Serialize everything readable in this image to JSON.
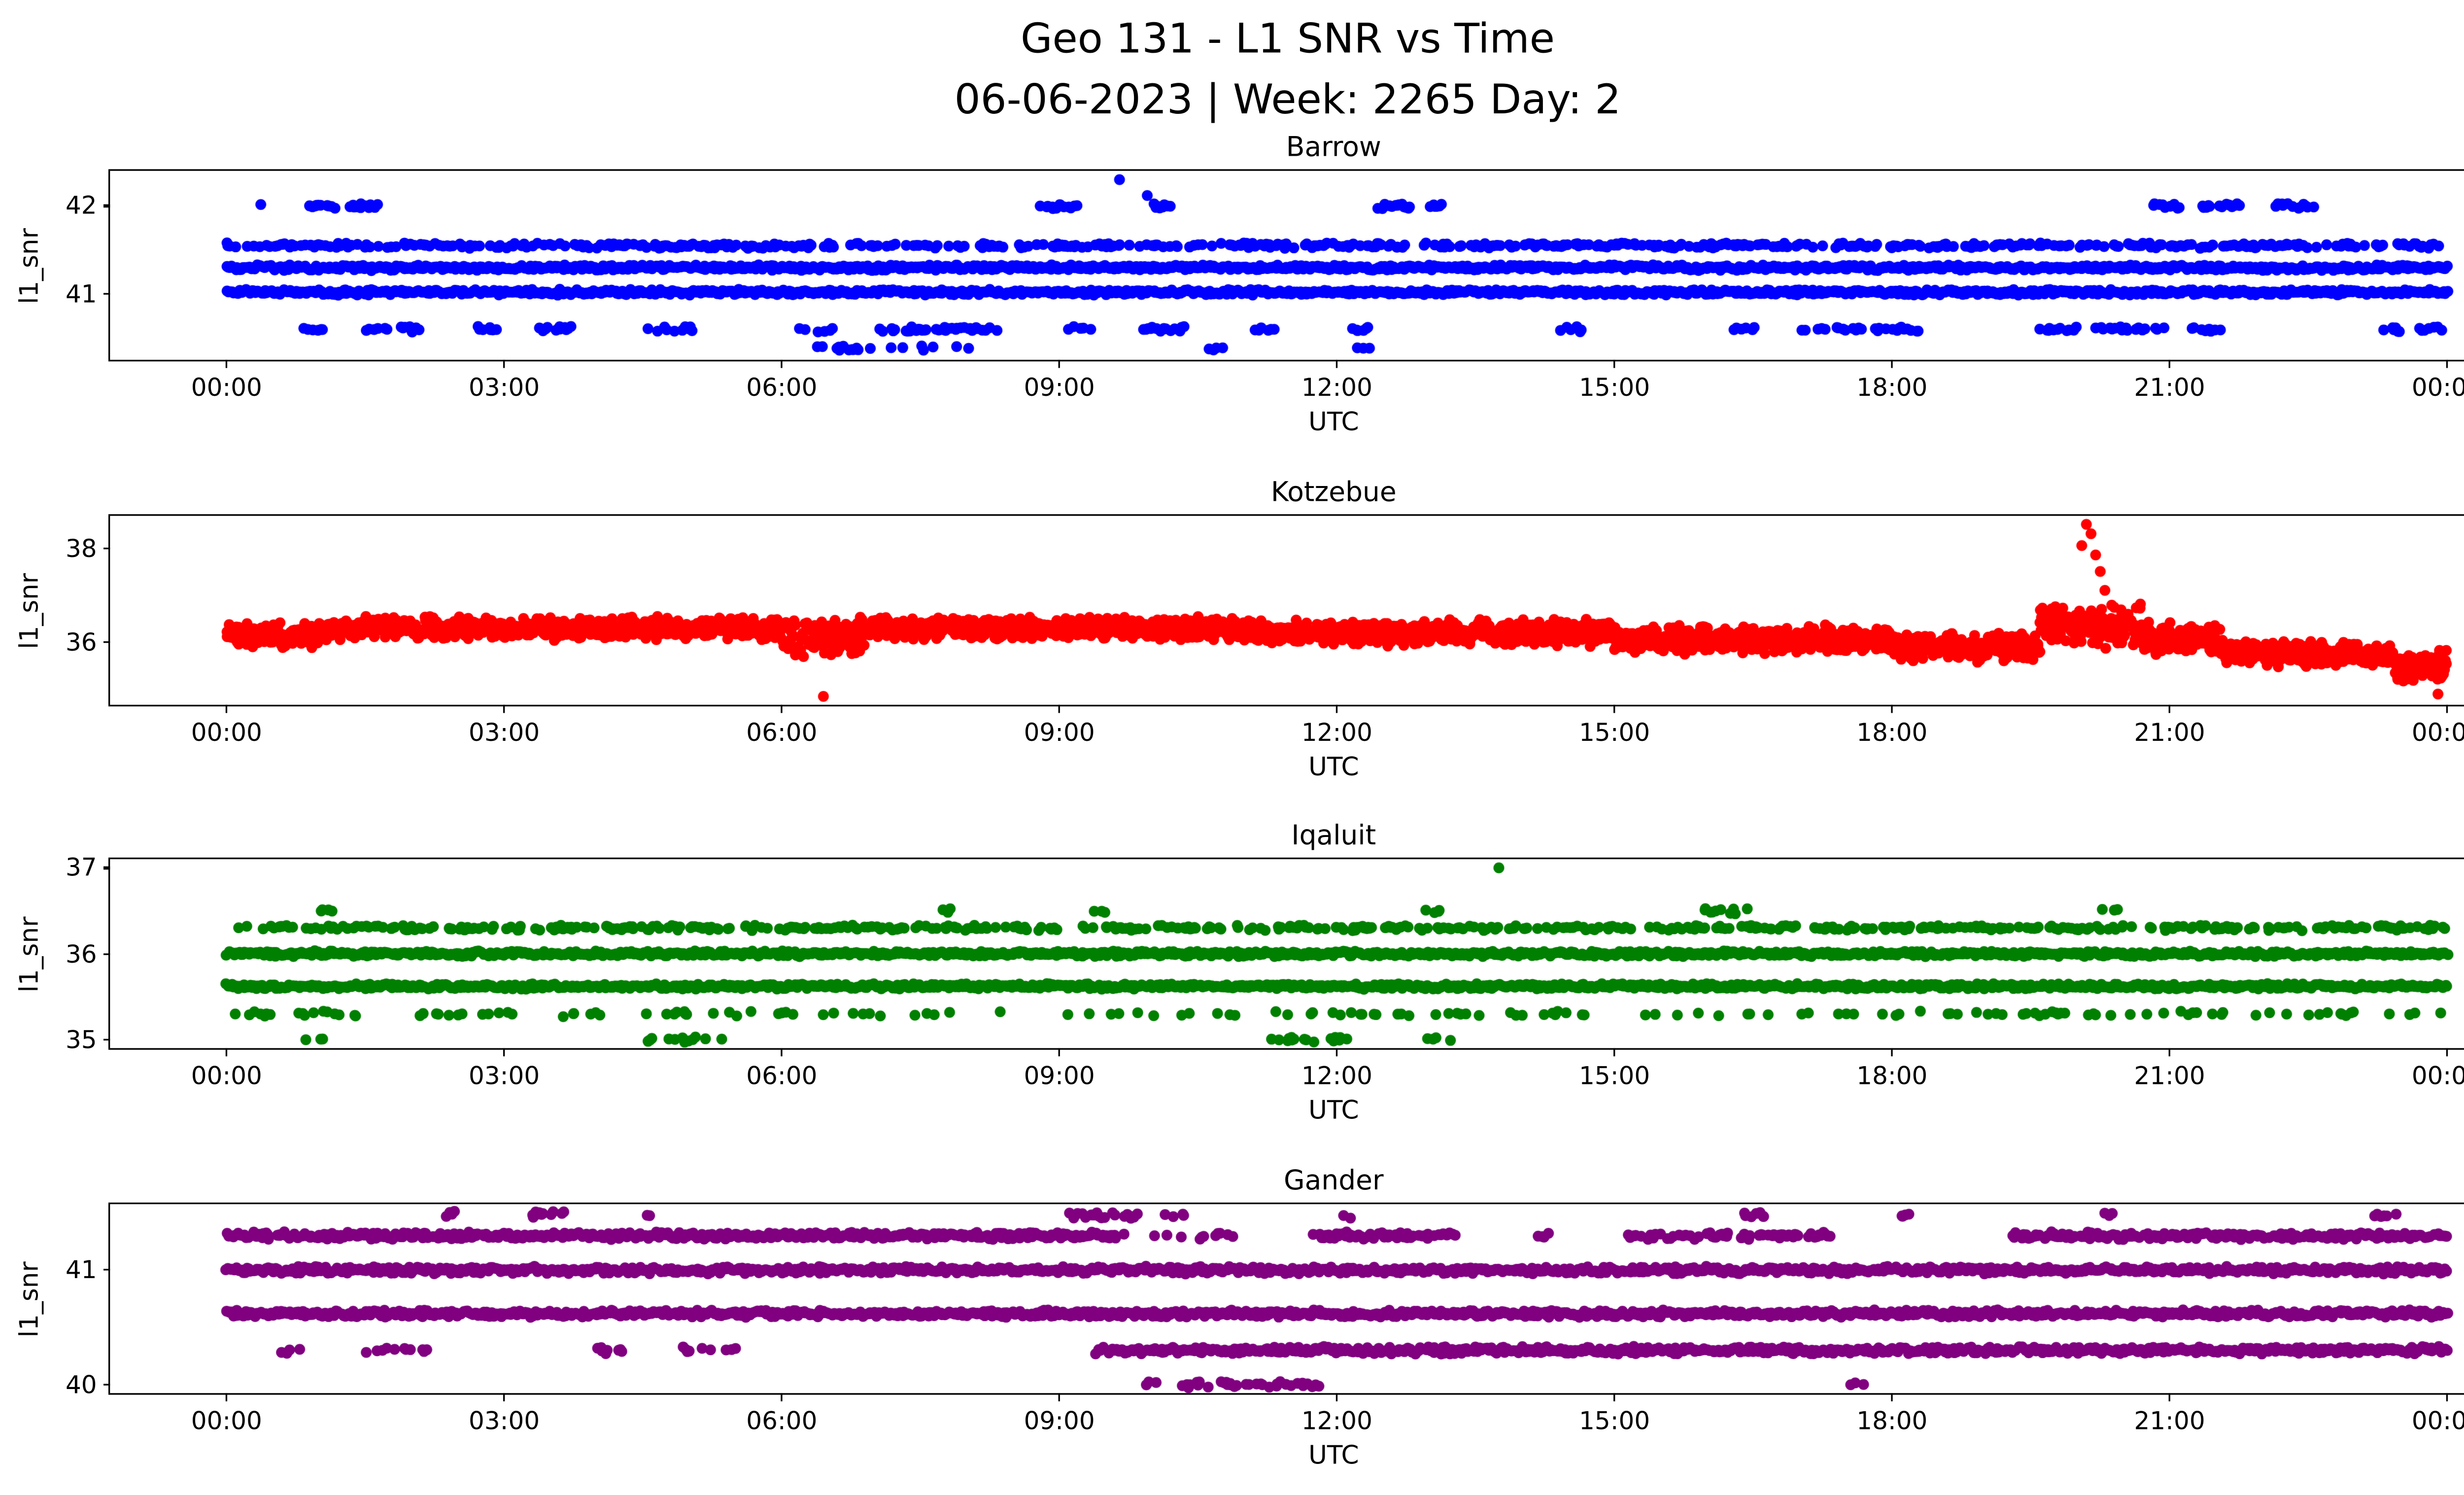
{
  "figure": {
    "title": "Geo 131 - L1 SNR vs Time",
    "subtitle": "06-06-2023 | Week: 2265 Day: 2"
  },
  "chart_data": [
    {
      "type": "scatter",
      "title": "Barrow",
      "ylabel": "l1_snr",
      "xlabel": "UTC",
      "color": "#0000ff",
      "xlim": [
        -1.26,
        25.19
      ],
      "ylim": [
        40.25,
        42.4
      ],
      "x_ticks": [
        {
          "t": 0,
          "label": "00:00"
        },
        {
          "t": 3,
          "label": "03:00"
        },
        {
          "t": 6,
          "label": "06:00"
        },
        {
          "t": 9,
          "label": "09:00"
        },
        {
          "t": 12,
          "label": "12:00"
        },
        {
          "t": 15,
          "label": "15:00"
        },
        {
          "t": 18,
          "label": "18:00"
        },
        {
          "t": 21,
          "label": "21:00"
        },
        {
          "t": 24,
          "label": "00:00"
        }
      ],
      "y_ticks": [
        {
          "v": 42,
          "label": "42"
        },
        {
          "v": 41,
          "label": "41"
        }
      ],
      "bands": [
        {
          "y": 41.55,
          "t0": 0,
          "t1": 24,
          "density": 0.5
        },
        {
          "y": 41.3,
          "t0": 0,
          "t1": 24,
          "density": 1.0
        },
        {
          "y": 41.02,
          "t0": 0,
          "t1": 24,
          "density": 1.0
        },
        {
          "y": 42.0,
          "t0": 0.3,
          "t1": 0.42,
          "density": 0.6
        },
        {
          "y": 42.0,
          "t0": 0.9,
          "t1": 1.2,
          "density": 0.6
        },
        {
          "y": 42.0,
          "t0": 1.3,
          "t1": 1.65,
          "density": 0.7
        },
        {
          "y": 42.0,
          "t0": 8.8,
          "t1": 9.2,
          "density": 0.7
        },
        {
          "y": 42.0,
          "t0": 10.0,
          "t1": 10.2,
          "density": 0.5
        },
        {
          "y": 42.0,
          "t0": 12.45,
          "t1": 12.8,
          "density": 0.6
        },
        {
          "y": 42.0,
          "t0": 13.0,
          "t1": 13.15,
          "density": 0.5
        },
        {
          "y": 42.0,
          "t0": 20.8,
          "t1": 21.1,
          "density": 0.6
        },
        {
          "y": 42.0,
          "t0": 21.35,
          "t1": 21.75,
          "density": 0.6
        },
        {
          "y": 42.0,
          "t0": 22.15,
          "t1": 22.55,
          "density": 0.6
        },
        {
          "y": 40.6,
          "t0": 0.8,
          "t1": 1.05,
          "density": 0.4
        },
        {
          "y": 40.6,
          "t0": 1.5,
          "t1": 2.1,
          "density": 0.45
        },
        {
          "y": 40.6,
          "t0": 2.6,
          "t1": 3.0,
          "density": 0.4
        },
        {
          "y": 40.6,
          "t0": 3.35,
          "t1": 3.75,
          "density": 0.6
        },
        {
          "y": 40.6,
          "t0": 4.55,
          "t1": 5.05,
          "density": 0.4
        },
        {
          "y": 40.6,
          "t0": 6.2,
          "t1": 6.55,
          "density": 0.45
        },
        {
          "y": 40.6,
          "t0": 7.0,
          "t1": 8.35,
          "density": 0.5
        },
        {
          "y": 40.6,
          "t0": 9.0,
          "t1": 9.35,
          "density": 0.45
        },
        {
          "y": 40.6,
          "t0": 9.9,
          "t1": 10.45,
          "density": 0.45
        },
        {
          "y": 40.6,
          "t0": 11.05,
          "t1": 11.35,
          "density": 0.4
        },
        {
          "y": 40.6,
          "t0": 12.05,
          "t1": 12.35,
          "density": 0.4
        },
        {
          "y": 40.6,
          "t0": 14.35,
          "t1": 14.65,
          "density": 0.35
        },
        {
          "y": 40.6,
          "t0": 16.25,
          "t1": 16.55,
          "density": 0.35
        },
        {
          "y": 40.6,
          "t0": 17.0,
          "t1": 18.35,
          "density": 0.4
        },
        {
          "y": 40.6,
          "t0": 19.55,
          "t1": 20.95,
          "density": 0.45
        },
        {
          "y": 40.6,
          "t0": 21.25,
          "t1": 21.55,
          "density": 0.35
        },
        {
          "y": 40.6,
          "t0": 23.25,
          "t1": 23.95,
          "density": 0.5
        },
        {
          "y": 40.38,
          "t0": 6.35,
          "t1": 8.15,
          "density": 0.3
        },
        {
          "y": 40.38,
          "t0": 10.6,
          "t1": 10.85,
          "density": 0.25
        },
        {
          "y": 40.38,
          "t0": 12.15,
          "t1": 12.35,
          "density": 0.3
        }
      ],
      "outliers": [
        [
          9.65,
          42.3
        ],
        [
          9.95,
          42.12
        ]
      ]
    },
    {
      "type": "scatter",
      "title": "Kotzebue",
      "ylabel": "l1_snr",
      "xlabel": "UTC",
      "color": "#ff0000",
      "xlim": [
        -1.26,
        25.19
      ],
      "ylim": [
        34.67,
        38.68
      ],
      "x_ticks": [
        {
          "t": 0,
          "label": "00:00"
        },
        {
          "t": 3,
          "label": "03:00"
        },
        {
          "t": 6,
          "label": "06:00"
        },
        {
          "t": 9,
          "label": "09:00"
        },
        {
          "t": 12,
          "label": "12:00"
        },
        {
          "t": 15,
          "label": "15:00"
        },
        {
          "t": 18,
          "label": "18:00"
        },
        {
          "t": 21,
          "label": "21:00"
        },
        {
          "t": 24,
          "label": "00:00"
        }
      ],
      "y_ticks": [
        {
          "v": 38,
          "label": "38"
        },
        {
          "v": 36,
          "label": "36"
        }
      ],
      "segments": [
        {
          "t0": 0,
          "t1": 1.0,
          "center": 36.15,
          "spread": 0.3
        },
        {
          "t0": 1.0,
          "t1": 6.0,
          "center": 36.3,
          "spread": 0.27
        },
        {
          "t0": 6.0,
          "t1": 6.9,
          "center": 36.1,
          "spread": 0.45
        },
        {
          "t0": 6.9,
          "t1": 11.0,
          "center": 36.3,
          "spread": 0.27
        },
        {
          "t0": 11.0,
          "t1": 15.0,
          "center": 36.2,
          "spread": 0.3
        },
        {
          "t0": 15.0,
          "t1": 18.0,
          "center": 36.05,
          "spread": 0.32
        },
        {
          "t0": 18.0,
          "t1": 19.6,
          "center": 35.9,
          "spread": 0.35
        },
        {
          "t0": 19.6,
          "t1": 20.7,
          "center": 36.35,
          "spread": 0.5
        },
        {
          "t0": 20.7,
          "t1": 21.6,
          "center": 36.05,
          "spread": 0.4
        },
        {
          "t0": 21.6,
          "t1": 23.4,
          "center": 35.75,
          "spread": 0.3
        },
        {
          "t0": 23.4,
          "t1": 24.0,
          "center": 35.5,
          "spread": 0.35
        }
      ],
      "outliers": [
        [
          20.1,
          38.5
        ],
        [
          20.15,
          38.3
        ],
        [
          20.05,
          38.05
        ],
        [
          20.2,
          37.85
        ],
        [
          20.25,
          37.5
        ],
        [
          20.3,
          37.1
        ],
        [
          6.45,
          34.85
        ],
        [
          23.9,
          34.9
        ]
      ]
    },
    {
      "type": "scatter",
      "title": "Iqaluit",
      "ylabel": "l1_snr",
      "xlabel": "UTC",
      "color": "#008000",
      "xlim": [
        -1.26,
        25.19
      ],
      "ylim": [
        34.9,
        37.1
      ],
      "x_ticks": [
        {
          "t": 0,
          "label": "00:00"
        },
        {
          "t": 3,
          "label": "03:00"
        },
        {
          "t": 6,
          "label": "06:00"
        },
        {
          "t": 9,
          "label": "09:00"
        },
        {
          "t": 12,
          "label": "12:00"
        },
        {
          "t": 15,
          "label": "15:00"
        },
        {
          "t": 18,
          "label": "18:00"
        },
        {
          "t": 21,
          "label": "21:00"
        },
        {
          "t": 24,
          "label": "00:00"
        }
      ],
      "y_ticks": [
        {
          "v": 37,
          "label": "37"
        },
        {
          "v": 36,
          "label": "36"
        },
        {
          "v": 35,
          "label": "35"
        }
      ],
      "bands": [
        {
          "y": 36.3,
          "t0": 0,
          "t1": 24,
          "density": 0.45
        },
        {
          "y": 36.0,
          "t0": 0,
          "t1": 24,
          "density": 1.0
        },
        {
          "y": 35.62,
          "t0": 0,
          "t1": 24,
          "density": 1.0
        },
        {
          "y": 36.5,
          "t0": 1.0,
          "t1": 1.2,
          "density": 0.5
        },
        {
          "y": 36.5,
          "t0": 7.75,
          "t1": 7.95,
          "density": 0.4
        },
        {
          "y": 36.5,
          "t0": 9.3,
          "t1": 9.55,
          "density": 0.5
        },
        {
          "y": 36.5,
          "t0": 12.95,
          "t1": 13.15,
          "density": 0.4
        },
        {
          "y": 36.5,
          "t0": 15.95,
          "t1": 16.45,
          "density": 0.45
        },
        {
          "y": 36.5,
          "t0": 20.25,
          "t1": 20.45,
          "density": 0.4
        },
        {
          "y": 35.3,
          "t0": 0,
          "t1": 24,
          "density": 0.15
        },
        {
          "y": 35.0,
          "t0": 0.85,
          "t1": 1.05,
          "density": 0.35
        },
        {
          "y": 35.0,
          "t0": 4.55,
          "t1": 5.45,
          "density": 0.3
        },
        {
          "y": 35.0,
          "t0": 11.3,
          "t1": 12.2,
          "density": 0.3
        },
        {
          "y": 35.0,
          "t0": 12.9,
          "t1": 13.3,
          "density": 0.3
        }
      ],
      "outliers": [
        [
          13.75,
          37.0
        ]
      ]
    },
    {
      "type": "scatter",
      "title": "Gander",
      "ylabel": "l1_snr",
      "xlabel": "UTC",
      "color": "#800080",
      "xlim": [
        -1.26,
        25.19
      ],
      "ylim": [
        39.925,
        41.575
      ],
      "x_ticks": [
        {
          "t": 0,
          "label": "00:00"
        },
        {
          "t": 3,
          "label": "03:00"
        },
        {
          "t": 6,
          "label": "06:00"
        },
        {
          "t": 9,
          "label": "09:00"
        },
        {
          "t": 12,
          "label": "12:00"
        },
        {
          "t": 15,
          "label": "15:00"
        },
        {
          "t": 18,
          "label": "18:00"
        },
        {
          "t": 21,
          "label": "21:00"
        },
        {
          "t": 24,
          "label": "00:00"
        }
      ],
      "y_ticks": [
        {
          "v": 41,
          "label": "41"
        },
        {
          "v": 40,
          "label": "40"
        }
      ],
      "bands": [
        {
          "y": 41.48,
          "t0": 2.3,
          "t1": 2.5,
          "density": 0.5
        },
        {
          "y": 41.48,
          "t0": 3.3,
          "t1": 3.65,
          "density": 0.5
        },
        {
          "y": 41.48,
          "t0": 4.4,
          "t1": 4.6,
          "density": 0.4
        },
        {
          "y": 41.48,
          "t0": 9.1,
          "t1": 9.85,
          "density": 0.5
        },
        {
          "y": 41.48,
          "t0": 10.15,
          "t1": 10.35,
          "density": 0.4
        },
        {
          "y": 41.48,
          "t0": 11.95,
          "t1": 12.15,
          "density": 0.35
        },
        {
          "y": 41.48,
          "t0": 16.4,
          "t1": 16.65,
          "density": 0.4
        },
        {
          "y": 41.48,
          "t0": 18.0,
          "t1": 18.2,
          "density": 0.35
        },
        {
          "y": 41.48,
          "t0": 20.25,
          "t1": 20.45,
          "density": 0.4
        },
        {
          "y": 41.48,
          "t0": 23.15,
          "t1": 23.45,
          "density": 0.45
        },
        {
          "y": 41.3,
          "t0": 0,
          "t1": 9.6,
          "density": 0.9
        },
        {
          "y": 41.3,
          "t0": 9.6,
          "t1": 10.9,
          "density": 0.2
        },
        {
          "y": 41.3,
          "t0": 11.75,
          "t1": 13.3,
          "density": 0.65
        },
        {
          "y": 41.3,
          "t0": 14.1,
          "t1": 14.3,
          "density": 0.3
        },
        {
          "y": 41.3,
          "t0": 15.15,
          "t1": 17.35,
          "density": 0.6
        },
        {
          "y": 41.3,
          "t0": 19.3,
          "t1": 24,
          "density": 0.8
        },
        {
          "y": 41.0,
          "t0": 0,
          "t1": 24,
          "density": 1.0
        },
        {
          "y": 40.62,
          "t0": 0,
          "t1": 24,
          "density": 1.0
        },
        {
          "y": 40.3,
          "t0": 0.6,
          "t1": 0.8,
          "density": 0.3
        },
        {
          "y": 40.3,
          "t0": 1.5,
          "t1": 2.2,
          "density": 0.35
        },
        {
          "y": 40.3,
          "t0": 4.0,
          "t1": 4.3,
          "density": 0.3
        },
        {
          "y": 40.3,
          "t0": 4.9,
          "t1": 5.5,
          "density": 0.3
        },
        {
          "y": 40.3,
          "t0": 9.4,
          "t1": 24,
          "density": 0.95
        },
        {
          "y": 40.0,
          "t0": 9.9,
          "t1": 10.05,
          "density": 0.3
        },
        {
          "y": 40.0,
          "t0": 10.3,
          "t1": 11.85,
          "density": 0.5
        },
        {
          "y": 40.0,
          "t0": 17.5,
          "t1": 17.7,
          "density": 0.3
        }
      ],
      "outliers": []
    }
  ]
}
